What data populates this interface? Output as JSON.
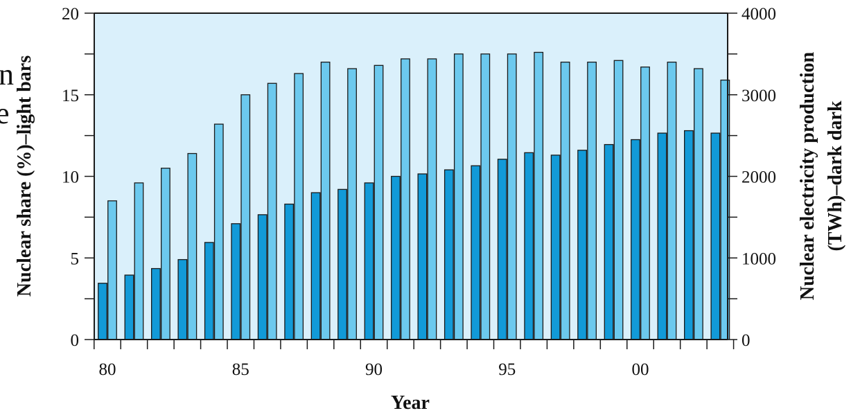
{
  "chart_data": {
    "type": "bar",
    "title": "",
    "categories": [
      "80",
      "81",
      "82",
      "83",
      "84",
      "85",
      "86",
      "87",
      "88",
      "89",
      "90",
      "91",
      "92",
      "93",
      "94",
      "95",
      "96",
      "97",
      "98",
      "99",
      "00",
      "01",
      "02",
      "03"
    ],
    "x_tick_labels": [
      "80",
      "85",
      "90",
      "95",
      "00"
    ],
    "xlabel": "Year",
    "ylabel_left": "Nuclear share (%)–light bars",
    "ylabel_right_lines": [
      "Nuclear electricity production",
      "(TWh)–dark dark"
    ],
    "left_axis": {
      "ylim": [
        0,
        20
      ],
      "ticks": [
        "0",
        "5",
        "10",
        "15",
        "20"
      ]
    },
    "right_axis": {
      "ylim": [
        0,
        4000
      ],
      "ticks": [
        "0",
        "1000",
        "2000",
        "3000",
        "4000"
      ]
    },
    "series": [
      {
        "name": "Nuclear share (%)",
        "axis": "left",
        "color": "#6cc9ee",
        "values": [
          8.5,
          9.6,
          10.5,
          11.4,
          13.2,
          15.0,
          15.7,
          16.3,
          17.0,
          16.6,
          16.8,
          17.2,
          17.2,
          17.5,
          17.5,
          17.5,
          17.6,
          17.0,
          17.0,
          17.1,
          16.7,
          17.0,
          16.6,
          15.9
        ]
      },
      {
        "name": "Nuclear electricity production (TWh)",
        "axis": "right",
        "color": "#129ad8",
        "values": [
          690,
          790,
          870,
          980,
          1190,
          1420,
          1530,
          1660,
          1800,
          1840,
          1920,
          2000,
          2030,
          2080,
          2130,
          2210,
          2290,
          2260,
          2320,
          2390,
          2450,
          2530,
          2560,
          2530
        ]
      }
    ],
    "plot_background": "#daf0fb",
    "grid": false
  },
  "stray_text": [
    "n",
    "e"
  ]
}
